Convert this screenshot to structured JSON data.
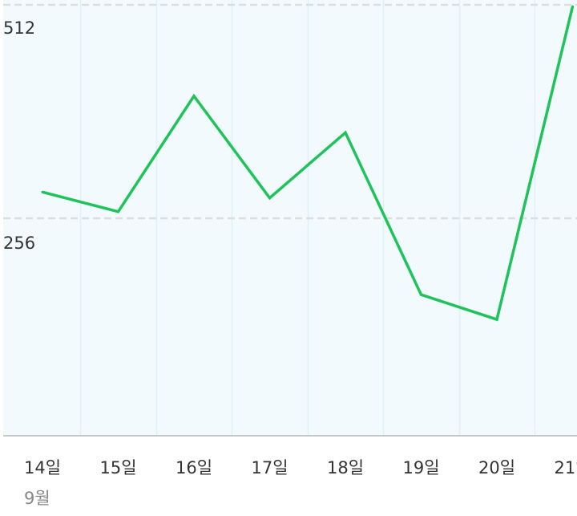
{
  "chart_data": {
    "type": "line",
    "x": [
      "14일",
      "15일",
      "16일",
      "17일",
      "18일",
      "19일",
      "20일",
      "21일"
    ],
    "x_group_label": "9월",
    "y_ticks": [
      "512",
      "256"
    ],
    "series": [
      {
        "values": [
          236,
          206,
          383,
          227,
          327,
          79,
          41,
          520
        ]
      }
    ],
    "ylim": [
      -137,
      530
    ],
    "grid": true,
    "colors": {
      "line": "#1ec35a",
      "plot_background": "#f3fafe",
      "gridline_vertical": "#dff1f4",
      "gridline_horizontal": "#dddddd",
      "axis": "#c8c8c8"
    }
  }
}
